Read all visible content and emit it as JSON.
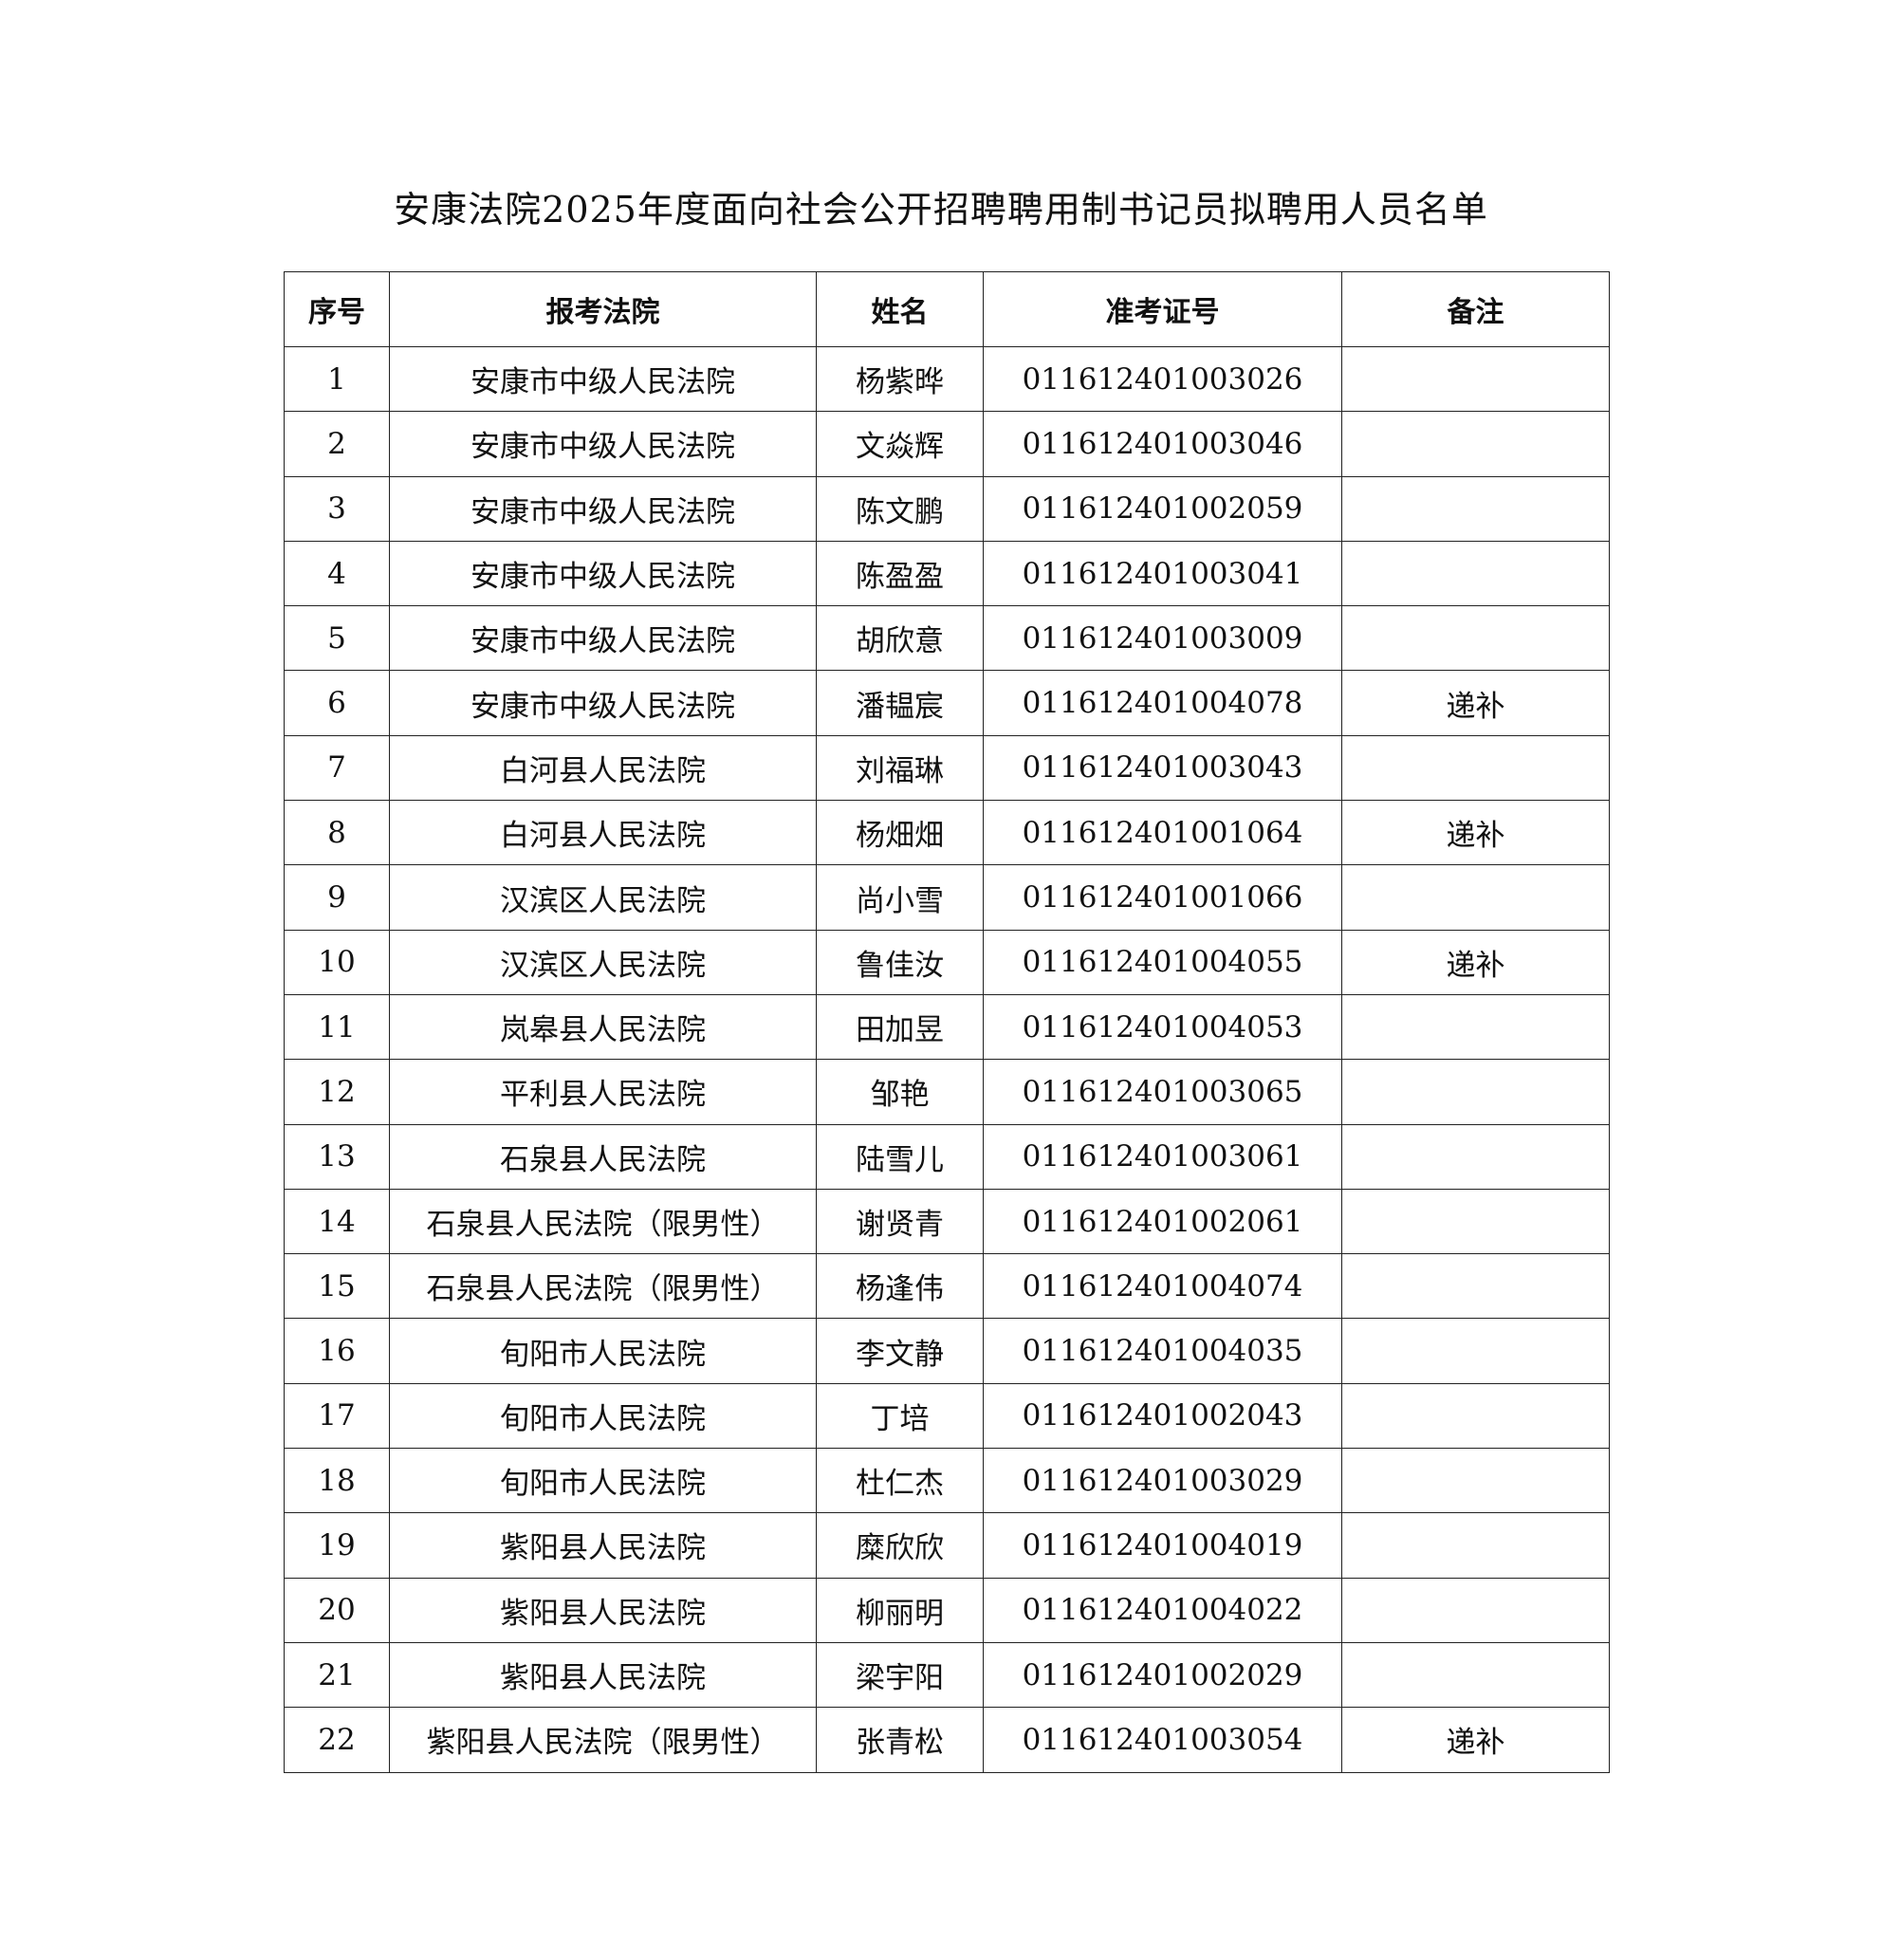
{
  "title": "安康法院2025年度面向社会公开招聘聘用制书记员拟聘用人员名单",
  "table": {
    "headers": [
      "序号",
      "报考法院",
      "姓名",
      "准考证号",
      "备注"
    ],
    "rows": [
      [
        "1",
        "安康市中级人民法院",
        "杨紫晔",
        "011612401003026",
        ""
      ],
      [
        "2",
        "安康市中级人民法院",
        "文焱辉",
        "011612401003046",
        ""
      ],
      [
        "3",
        "安康市中级人民法院",
        "陈文鹏",
        "011612401002059",
        ""
      ],
      [
        "4",
        "安康市中级人民法院",
        "陈盈盈",
        "011612401003041",
        ""
      ],
      [
        "5",
        "安康市中级人民法院",
        "胡欣意",
        "011612401003009",
        ""
      ],
      [
        "6",
        "安康市中级人民法院",
        "潘韫宸",
        "011612401004078",
        "递补"
      ],
      [
        "7",
        "白河县人民法院",
        "刘福琳",
        "011612401003043",
        ""
      ],
      [
        "8",
        "白河县人民法院",
        "杨畑畑",
        "011612401001064",
        "递补"
      ],
      [
        "9",
        "汉滨区人民法院",
        "尚小雪",
        "011612401001066",
        ""
      ],
      [
        "10",
        "汉滨区人民法院",
        "鲁佳汝",
        "011612401004055",
        "递补"
      ],
      [
        "11",
        "岚皋县人民法院",
        "田加昱",
        "011612401004053",
        ""
      ],
      [
        "12",
        "平利县人民法院",
        "邹艳",
        "011612401003065",
        ""
      ],
      [
        "13",
        "石泉县人民法院",
        "陆雪儿",
        "011612401003061",
        ""
      ],
      [
        "14",
        "石泉县人民法院（限男性）",
        "谢贤青",
        "011612401002061",
        ""
      ],
      [
        "15",
        "石泉县人民法院（限男性）",
        "杨逢伟",
        "011612401004074",
        ""
      ],
      [
        "16",
        "旬阳市人民法院",
        "李文静",
        "011612401004035",
        ""
      ],
      [
        "17",
        "旬阳市人民法院",
        "丁培",
        "011612401002043",
        ""
      ],
      [
        "18",
        "旬阳市人民法院",
        "杜仁杰",
        "011612401003029",
        ""
      ],
      [
        "19",
        "紫阳县人民法院",
        "糜欣欣",
        "011612401004019",
        ""
      ],
      [
        "20",
        "紫阳县人民法院",
        "柳丽明",
        "011612401004022",
        ""
      ],
      [
        "21",
        "紫阳县人民法院",
        "梁宇阳",
        "011612401002029",
        ""
      ],
      [
        "22",
        "紫阳县人民法院（限男性）",
        "张青松",
        "011612401003054",
        "递补"
      ]
    ]
  }
}
